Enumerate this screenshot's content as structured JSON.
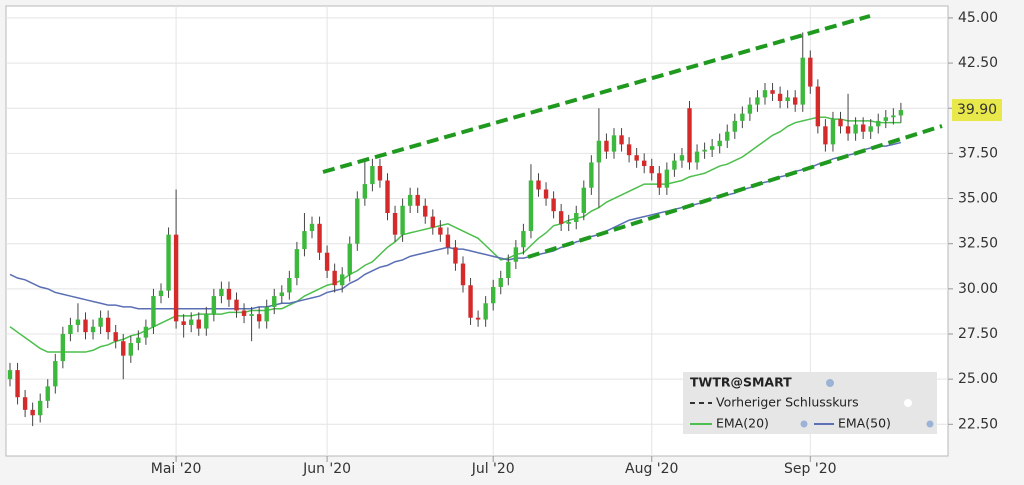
{
  "chart_data": {
    "type": "candlestick",
    "categories": [
      null,
      null,
      null,
      null,
      null,
      null,
      null,
      null,
      null,
      null,
      null,
      null,
      null,
      null,
      null,
      null,
      null,
      null,
      null,
      null,
      null,
      null,
      "Mai '20",
      null,
      null,
      null,
      null,
      null,
      null,
      null,
      null,
      null,
      null,
      null,
      null,
      null,
      null,
      null,
      null,
      null,
      null,
      null,
      "Jun '20",
      null,
      null,
      null,
      null,
      null,
      null,
      null,
      null,
      null,
      null,
      null,
      null,
      null,
      null,
      null,
      null,
      null,
      null,
      null,
      null,
      null,
      "Jul '20",
      null,
      null,
      null,
      null,
      null,
      null,
      null,
      null,
      null,
      null,
      null,
      null,
      null,
      null,
      null,
      null,
      null,
      null,
      null,
      null,
      "Aug '20",
      null,
      null,
      null,
      null,
      null,
      null,
      null,
      null,
      null,
      null,
      null,
      null,
      null,
      null,
      null,
      null,
      null,
      null,
      null,
      null,
      "Sep '20",
      null,
      null,
      null,
      null,
      null,
      null,
      null,
      null,
      null,
      null,
      null,
      null
    ],
    "ylim": [
      20.8,
      45.55
    ],
    "yticks": [
      {
        "value": 22.5,
        "label": "22.50"
      },
      {
        "value": 25,
        "label": "25.00"
      },
      {
        "value": 27.5,
        "label": "27.50"
      },
      {
        "value": 30,
        "label": "30.00"
      },
      {
        "value": 32.5,
        "label": "32.50"
      },
      {
        "value": 35,
        "label": "35.00"
      },
      {
        "value": 37.5,
        "label": "37.50"
      },
      {
        "value": 40,
        "label": "40.00"
      },
      {
        "value": 42.5,
        "label": "42.50"
      },
      {
        "value": 45,
        "label": "45.00"
      }
    ],
    "grid": true,
    "last_price": {
      "value": 39.9,
      "label": "39.90"
    },
    "series": [
      {
        "name": "TWTR@SMART",
        "type": "candlestick",
        "up_color": "#3cb83c",
        "down_color": "#d42a2a",
        "open": [
          25.0,
          25.5,
          24.0,
          23.3,
          23.0,
          23.8,
          24.6,
          26.0,
          27.5,
          28.0,
          28.3,
          27.6,
          27.9,
          28.4,
          27.6,
          27.1,
          26.3,
          27.0,
          27.3,
          27.9,
          29.6,
          29.9,
          33.0,
          28.2,
          28.0,
          28.3,
          27.8,
          28.6,
          29.6,
          30.0,
          29.4,
          28.8,
          28.5,
          28.6,
          28.2,
          29.0,
          29.6,
          29.8,
          30.6,
          32.2,
          33.2,
          33.6,
          32.0,
          31.0,
          30.2,
          30.8,
          32.5,
          35.0,
          35.8,
          36.8,
          36.0,
          34.2,
          33.0,
          34.6,
          35.2,
          34.6,
          34.0,
          33.4,
          33.0,
          32.3,
          31.4,
          30.2,
          28.4,
          28.3,
          29.2,
          30.1,
          30.6,
          31.5,
          32.3,
          33.2,
          36.0,
          35.5,
          35.0,
          34.3,
          33.6,
          33.7,
          34.2,
          35.6,
          37.0,
          38.2,
          37.6,
          38.5,
          38.0,
          37.4,
          37.1,
          36.8,
          36.4,
          35.6,
          36.6,
          37.1,
          40.0,
          37.0,
          37.6,
          37.7,
          37.9,
          38.2,
          38.7,
          39.3,
          39.7,
          40.2,
          40.6,
          41.0,
          40.8,
          40.4,
          40.6,
          40.2,
          42.8,
          41.2,
          39.0,
          38.0,
          39.4,
          39.0,
          38.6,
          39.1,
          38.7,
          39.0,
          39.3,
          39.5,
          39.6
        ],
        "high": [
          25.9,
          25.9,
          24.4,
          23.7,
          24.2,
          25.0,
          26.4,
          27.9,
          28.4,
          29.2,
          28.7,
          28.3,
          28.8,
          28.8,
          28.0,
          27.5,
          27.4,
          27.7,
          28.3,
          30.0,
          30.3,
          33.4,
          35.5,
          28.6,
          28.7,
          28.7,
          29.0,
          30.0,
          30.4,
          30.4,
          29.8,
          29.2,
          29.0,
          29.0,
          29.4,
          30.0,
          30.2,
          31.0,
          32.6,
          34.2,
          34.0,
          34.0,
          32.4,
          31.4,
          31.2,
          32.9,
          35.4,
          37.2,
          37.2,
          37.2,
          36.4,
          34.6,
          35.0,
          35.6,
          35.6,
          35.0,
          34.4,
          33.8,
          33.4,
          32.7,
          31.8,
          30.6,
          28.8,
          29.6,
          30.5,
          31.0,
          31.9,
          32.7,
          33.6,
          36.9,
          36.4,
          35.9,
          35.4,
          34.7,
          34.1,
          34.6,
          36.0,
          37.4,
          40.0,
          38.6,
          38.9,
          38.9,
          38.4,
          37.8,
          37.5,
          37.2,
          36.8,
          37.0,
          37.5,
          37.8,
          40.4,
          38.0,
          38.1,
          38.3,
          38.6,
          39.1,
          39.7,
          40.1,
          40.6,
          41.0,
          41.4,
          41.4,
          41.2,
          41.0,
          41.0,
          44.2,
          43.2,
          41.6,
          39.4,
          39.8,
          39.8,
          40.8,
          39.5,
          39.5,
          39.4,
          39.7,
          39.9,
          40.0,
          40.3
        ],
        "low": [
          24.6,
          23.6,
          22.9,
          22.4,
          22.6,
          23.4,
          24.2,
          25.6,
          27.1,
          27.6,
          27.2,
          27.2,
          27.5,
          27.2,
          26.7,
          25.0,
          25.9,
          26.6,
          26.9,
          27.5,
          29.2,
          29.5,
          27.8,
          27.3,
          27.6,
          27.4,
          27.4,
          28.2,
          29.2,
          29.0,
          28.4,
          28.1,
          27.1,
          27.8,
          27.8,
          28.6,
          29.2,
          29.4,
          30.2,
          31.8,
          32.8,
          31.6,
          30.6,
          29.8,
          29.8,
          30.4,
          32.1,
          34.6,
          35.4,
          35.6,
          33.8,
          32.6,
          32.6,
          34.2,
          34.2,
          33.6,
          33.0,
          32.6,
          31.9,
          31.0,
          29.8,
          28.0,
          27.9,
          27.9,
          28.8,
          29.7,
          30.2,
          31.1,
          31.9,
          32.8,
          35.1,
          34.6,
          33.9,
          33.2,
          33.2,
          33.3,
          33.8,
          35.2,
          34.5,
          37.2,
          37.2,
          37.6,
          37.0,
          36.7,
          36.4,
          36.0,
          35.2,
          35.2,
          36.2,
          36.7,
          36.6,
          36.6,
          37.2,
          37.3,
          37.5,
          37.8,
          38.3,
          38.9,
          39.3,
          39.8,
          40.2,
          40.4,
          40.0,
          40.0,
          39.8,
          39.8,
          40.8,
          38.6,
          37.6,
          37.6,
          38.6,
          38.2,
          38.2,
          38.3,
          38.3,
          38.6,
          38.9,
          39.1,
          39.2
        ],
        "close": [
          25.5,
          24.0,
          23.3,
          23.0,
          23.8,
          24.6,
          26.0,
          27.5,
          28.0,
          28.3,
          27.6,
          27.9,
          28.4,
          27.6,
          27.1,
          26.3,
          27.0,
          27.3,
          27.9,
          29.6,
          29.9,
          33.0,
          28.2,
          28.0,
          28.3,
          27.8,
          28.6,
          29.6,
          30.0,
          29.4,
          28.8,
          28.5,
          28.6,
          28.2,
          29.0,
          29.6,
          29.8,
          30.6,
          32.2,
          33.2,
          33.6,
          32.0,
          31.0,
          30.2,
          30.8,
          32.5,
          35.0,
          35.8,
          36.8,
          36.0,
          34.2,
          33.0,
          34.6,
          35.2,
          34.6,
          34.0,
          33.4,
          33.0,
          32.3,
          31.4,
          30.2,
          28.4,
          28.3,
          29.2,
          30.1,
          30.6,
          31.5,
          32.3,
          33.2,
          36.0,
          35.5,
          35.0,
          34.3,
          33.6,
          33.7,
          34.2,
          35.6,
          37.0,
          38.2,
          37.6,
          38.5,
          38.0,
          37.4,
          37.1,
          36.8,
          36.4,
          35.6,
          36.6,
          37.1,
          37.4,
          37.0,
          37.6,
          37.7,
          37.9,
          38.2,
          38.7,
          39.3,
          39.7,
          40.2,
          40.6,
          41.0,
          40.8,
          40.4,
          40.6,
          40.2,
          42.8,
          41.2,
          39.0,
          38.0,
          39.4,
          39.0,
          38.6,
          39.1,
          38.7,
          39.0,
          39.3,
          39.5,
          39.6,
          39.9
        ]
      },
      {
        "name": "Vorheriger Schlusskurs",
        "type": "dashed",
        "color": "#333333"
      },
      {
        "name": "EMA(20)",
        "type": "line",
        "color": "#4cbf4c",
        "values": [
          27.9,
          27.6,
          27.3,
          27.0,
          26.7,
          26.5,
          26.5,
          26.5,
          26.5,
          26.5,
          26.5,
          26.6,
          26.8,
          26.9,
          27.1,
          27.2,
          27.4,
          27.5,
          27.7,
          27.9,
          28.1,
          28.3,
          28.5,
          28.5,
          28.5,
          28.6,
          28.6,
          28.6,
          28.6,
          28.7,
          28.7,
          28.7,
          28.8,
          28.8,
          28.8,
          28.9,
          28.9,
          29.1,
          29.3,
          29.6,
          29.8,
          30.0,
          30.2,
          30.3,
          30.5,
          30.8,
          31.0,
          31.3,
          31.5,
          31.9,
          32.3,
          32.6,
          33.0,
          33.1,
          33.2,
          33.3,
          33.4,
          33.5,
          33.6,
          33.4,
          33.2,
          33.0,
          32.8,
          32.4,
          32.0,
          31.6,
          31.7,
          31.9,
          32.0,
          32.4,
          32.8,
          33.1,
          33.5,
          33.6,
          33.8,
          33.9,
          34.0,
          34.3,
          34.5,
          34.8,
          35.0,
          35.2,
          35.4,
          35.6,
          35.8,
          35.8,
          35.8,
          35.8,
          35.9,
          36.0,
          36.2,
          36.3,
          36.4,
          36.6,
          36.8,
          36.9,
          37.1,
          37.3,
          37.6,
          37.9,
          38.2,
          38.5,
          38.7,
          39.0,
          39.2,
          39.3,
          39.4,
          39.5,
          39.5,
          39.4,
          39.4,
          39.3,
          39.3,
          39.3,
          39.3,
          39.2,
          39.2,
          39.2,
          39.2
        ]
      },
      {
        "name": "EMA(50)",
        "type": "line",
        "color": "#5a6fb4",
        "values": [
          30.8,
          30.6,
          30.5,
          30.3,
          30.1,
          30.0,
          29.8,
          29.7,
          29.6,
          29.5,
          29.4,
          29.3,
          29.2,
          29.1,
          29.1,
          29.0,
          29.0,
          28.9,
          28.9,
          28.9,
          28.9,
          28.9,
          28.9,
          28.9,
          28.9,
          28.9,
          28.9,
          28.9,
          28.9,
          28.9,
          28.9,
          28.9,
          28.9,
          29.0,
          29.0,
          29.1,
          29.2,
          29.2,
          29.3,
          29.4,
          29.5,
          29.6,
          29.8,
          29.9,
          30.0,
          30.3,
          30.5,
          30.8,
          31.0,
          31.2,
          31.3,
          31.5,
          31.6,
          31.8,
          31.9,
          32.0,
          32.1,
          32.2,
          32.3,
          32.2,
          32.2,
          32.1,
          32.0,
          31.9,
          31.8,
          31.7,
          31.6,
          31.7,
          31.7,
          31.8,
          31.9,
          32.0,
          32.1,
          32.3,
          32.4,
          32.6,
          32.7,
          32.9,
          33.0,
          33.2,
          33.4,
          33.6,
          33.8,
          33.9,
          34.0,
          34.1,
          34.2,
          34.3,
          34.4,
          34.5,
          34.6,
          34.7,
          34.8,
          35.0,
          35.1,
          35.2,
          35.3,
          35.5,
          35.6,
          35.8,
          35.9,
          36.0,
          36.2,
          36.3,
          36.5,
          36.6,
          36.7,
          36.9,
          37.0,
          37.2,
          37.3,
          37.4,
          37.5,
          37.7,
          37.8,
          37.9,
          37.9,
          38.0,
          38.1
        ]
      }
    ]
  }
}
